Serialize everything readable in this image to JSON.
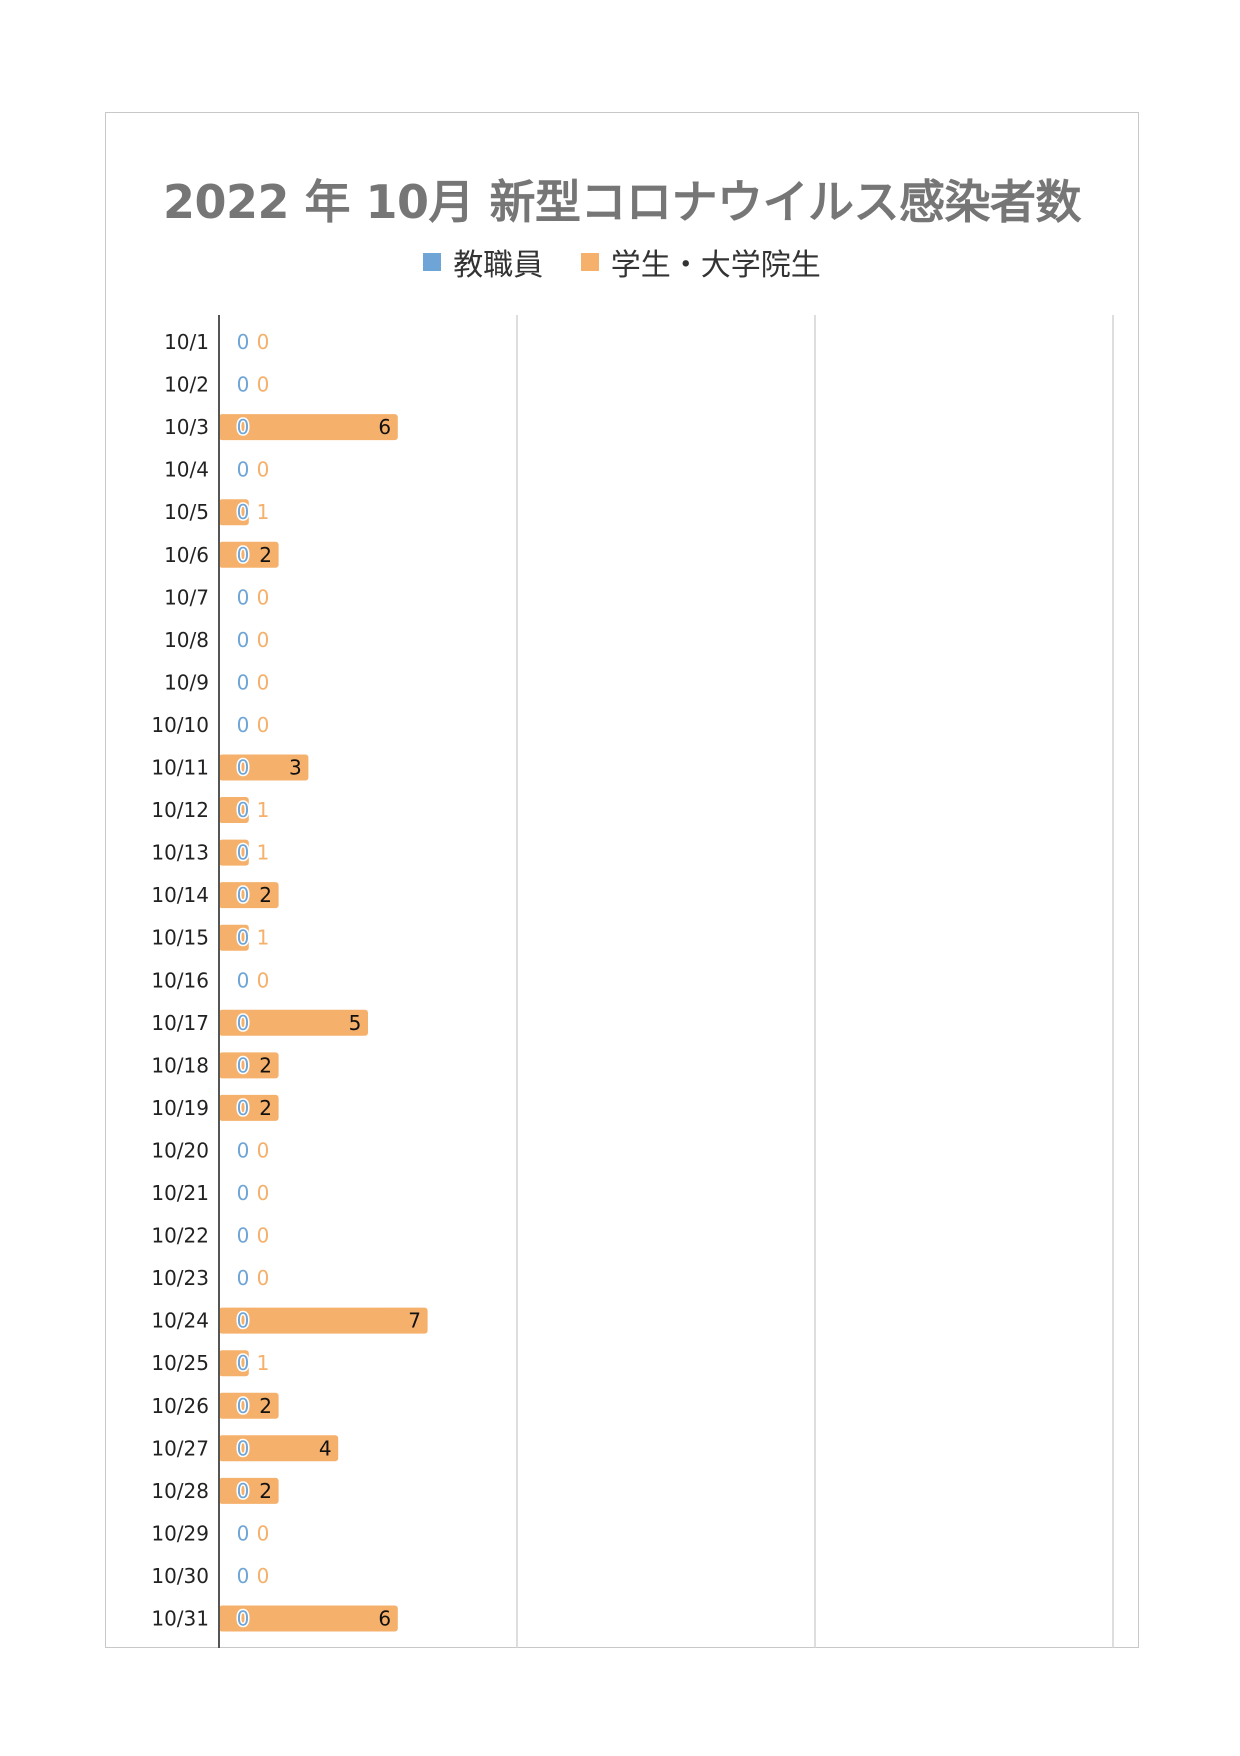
{
  "colors": {
    "staff": "#6fa5d6",
    "students": "#f5b06b",
    "grid": "#d4d4d4",
    "axis": "#555555"
  },
  "chart_data": {
    "type": "bar",
    "orientation": "horizontal",
    "stacked": true,
    "title": "2022 年 10月 新型コロナウイルス感染者数",
    "legend_position": "top",
    "grid": true,
    "xlim": [
      0,
      30
    ],
    "categories": [
      "10/1",
      "10/2",
      "10/3",
      "10/4",
      "10/5",
      "10/6",
      "10/7",
      "10/8",
      "10/9",
      "10/10",
      "10/11",
      "10/12",
      "10/13",
      "10/14",
      "10/15",
      "10/16",
      "10/17",
      "10/18",
      "10/19",
      "10/20",
      "10/21",
      "10/22",
      "10/23",
      "10/24",
      "10/25",
      "10/26",
      "10/27",
      "10/28",
      "10/29",
      "10/30",
      "10/31"
    ],
    "series": [
      {
        "name": "教職員",
        "color": "#6fa5d6",
        "values": [
          0,
          0,
          0,
          0,
          0,
          0,
          0,
          0,
          0,
          0,
          0,
          0,
          0,
          0,
          0,
          0,
          0,
          0,
          0,
          0,
          0,
          0,
          0,
          0,
          0,
          0,
          0,
          0,
          0,
          0,
          0
        ]
      },
      {
        "name": "学生・大学院生",
        "color": "#f5b06b",
        "values": [
          0,
          0,
          6,
          0,
          1,
          2,
          0,
          0,
          0,
          0,
          3,
          1,
          1,
          2,
          1,
          0,
          5,
          2,
          2,
          0,
          0,
          0,
          0,
          7,
          1,
          2,
          4,
          2,
          0,
          0,
          6
        ]
      }
    ]
  }
}
